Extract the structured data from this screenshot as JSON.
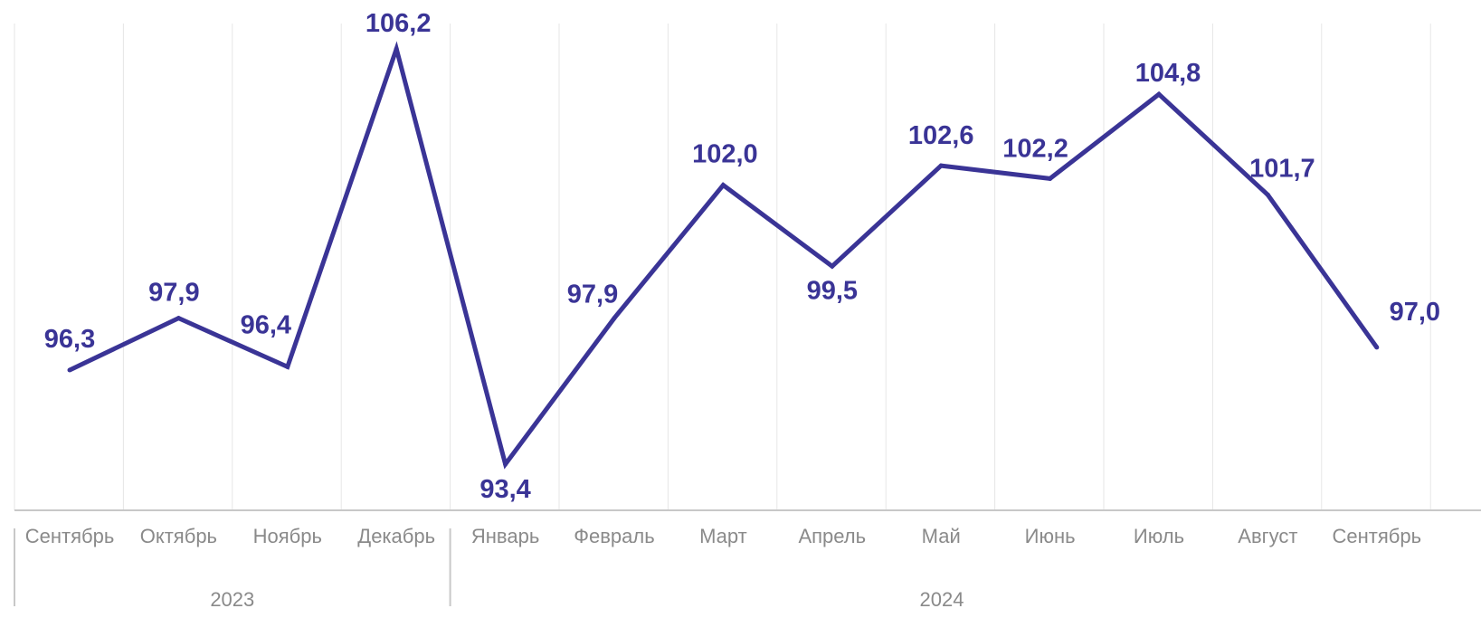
{
  "chart_data": {
    "type": "line",
    "categories": [
      "Сентябрь",
      "Октябрь",
      "Ноябрь",
      "Декабрь",
      "Январь",
      "Февраль",
      "Март",
      "Апрель",
      "Май",
      "Июнь",
      "Июль",
      "Август",
      "Сентябрь"
    ],
    "values": [
      96.3,
      97.9,
      96.4,
      106.2,
      93.4,
      97.9,
      102.0,
      99.5,
      102.6,
      102.2,
      104.8,
      101.7,
      97.0
    ],
    "labels": [
      "96,3",
      "97,9",
      "96,4",
      "106,2",
      "93,4",
      "97,9",
      "102,0",
      "99,5",
      "102,6",
      "102,2",
      "104,8",
      "101,7",
      "97,0"
    ],
    "year_groups": [
      {
        "label": "2023",
        "start": 0,
        "end": 3
      },
      {
        "label": "2024",
        "start": 4,
        "end": 12
      }
    ],
    "ylim": [
      91,
      107
    ],
    "grid": "vertical",
    "line_color": "#3a3496",
    "grid_color": "#e6e6e6",
    "axis_color": "#c8c8c8",
    "label_color": "#3a3496",
    "tick_label_color": "#8a8a8a"
  }
}
